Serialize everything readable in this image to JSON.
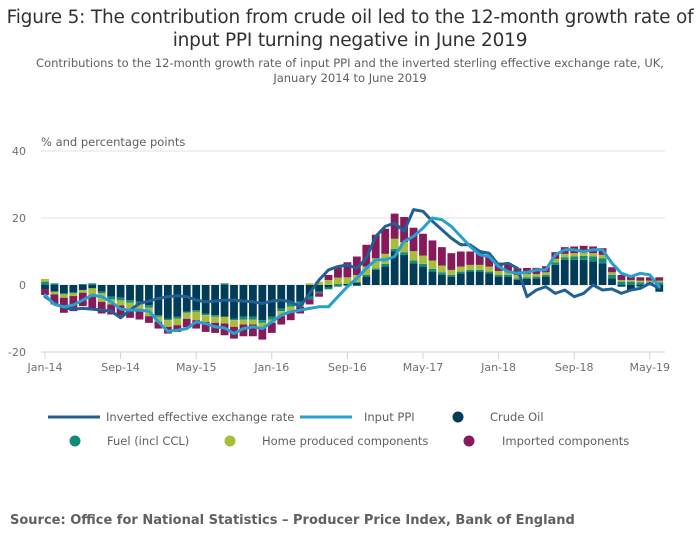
{
  "title": "Figure 5: The contribution from crude oil led to the 12-month growth rate of input PPI turning negative in June 2019",
  "subtitle": "Contributions to the 12-month growth rate of input PPI and the inverted sterling effective exchange rate, UK, January 2014 to June 2019",
  "source": "Source: Office for National Statistics – Producer Price Index, Bank of England",
  "colors": {
    "crude_oil": "#003c57",
    "fuel": "#118c7b",
    "home_produced": "#a8bd3a",
    "imported": "#871a5b",
    "exchange_rate": "#206095",
    "input_ppi": "#27a0cc",
    "grid": "#e0e0e0",
    "axis": "#c8d4e3"
  },
  "chart_data": {
    "type": "bar",
    "stacked": true,
    "title": "Figure 5: The contribution from crude oil led to the 12-month growth rate of input PPI turning negative in June 2019",
    "ylabel": "% and percentage points",
    "xlabel": "",
    "ylim": [
      -20,
      40
    ],
    "yticks": [
      -20,
      0,
      20,
      40
    ],
    "grid": true,
    "legend_position": "bottom",
    "xtick_labels": [
      "Jan-14",
      "Sep-14",
      "May-15",
      "Jan-16",
      "Sep-16",
      "May-17",
      "Jan-18",
      "Sep-18",
      "May-19"
    ],
    "xtick_indices": [
      0,
      8,
      16,
      24,
      32,
      40,
      48,
      56,
      64
    ],
    "categories": [
      "Jan-14",
      "Feb-14",
      "Mar-14",
      "Apr-14",
      "May-14",
      "Jun-14",
      "Jul-14",
      "Aug-14",
      "Sep-14",
      "Oct-14",
      "Nov-14",
      "Dec-14",
      "Jan-15",
      "Feb-15",
      "Mar-15",
      "Apr-15",
      "May-15",
      "Jun-15",
      "Jul-15",
      "Aug-15",
      "Sep-15",
      "Oct-15",
      "Nov-15",
      "Dec-15",
      "Jan-16",
      "Feb-16",
      "Mar-16",
      "Apr-16",
      "May-16",
      "Jun-16",
      "Jul-16",
      "Aug-16",
      "Sep-16",
      "Oct-16",
      "Nov-16",
      "Dec-16",
      "Jan-17",
      "Feb-17",
      "Mar-17",
      "Apr-17",
      "May-17",
      "Jun-17",
      "Jul-17",
      "Aug-17",
      "Sep-17",
      "Oct-17",
      "Nov-17",
      "Dec-17",
      "Jan-18",
      "Feb-18",
      "Mar-18",
      "Apr-18",
      "May-18",
      "Jun-18",
      "Jul-18",
      "Aug-18",
      "Sep-18",
      "Oct-18",
      "Nov-18",
      "Dec-18",
      "Jan-19",
      "Feb-19",
      "Mar-19",
      "Apr-19",
      "May-19",
      "Jun-19"
    ],
    "bar_series": [
      {
        "name": "Crude Oil",
        "key": "crude_oil",
        "values": [
          -1.2,
          -2.0,
          -2.5,
          -2.2,
          -1.5,
          -1.0,
          -2.0,
          -3.5,
          -3.8,
          -4.5,
          -5.0,
          -6.0,
          -9.0,
          -10.0,
          -9.5,
          -8.0,
          -7.5,
          -8.5,
          -9.0,
          -9.5,
          -10.0,
          -9.5,
          -9.5,
          -10.5,
          -9.5,
          -7.0,
          -5.5,
          -5.0,
          -3.5,
          -2.0,
          -0.8,
          0.2,
          0.3,
          0.8,
          2.5,
          4.5,
          5.5,
          10.0,
          9.0,
          6.5,
          5.5,
          4.0,
          3.0,
          2.5,
          3.5,
          4.0,
          4.0,
          3.5,
          2.5,
          2.5,
          1.5,
          1.8,
          2.0,
          2.5,
          6.0,
          7.5,
          7.5,
          7.5,
          7.0,
          6.5,
          2.0,
          -0.5,
          -1.5,
          -0.5,
          0.0,
          -2.0
        ]
      },
      {
        "name": "Fuel (incl CCL)",
        "key": "fuel",
        "values": [
          1.0,
          0.5,
          -0.3,
          -0.3,
          0.3,
          0.5,
          -0.5,
          -0.8,
          -0.8,
          -0.8,
          -0.8,
          -0.8,
          -0.5,
          -0.5,
          -0.5,
          -0.3,
          -0.5,
          -0.5,
          -0.5,
          0.5,
          -0.5,
          -0.8,
          -0.8,
          -0.8,
          -0.8,
          -0.8,
          -1.0,
          -1.0,
          -0.8,
          -0.5,
          -0.5,
          -0.5,
          -0.3,
          -0.3,
          0.5,
          0.5,
          0.8,
          0.8,
          0.8,
          0.8,
          0.8,
          0.8,
          0.8,
          0.5,
          0.5,
          0.5,
          0.5,
          0.5,
          0.5,
          0.5,
          0.5,
          0.5,
          0.5,
          0.5,
          0.8,
          0.8,
          1.0,
          1.2,
          1.5,
          1.5,
          1.0,
          1.0,
          1.0,
          0.8,
          0.8,
          0.8
        ]
      },
      {
        "name": "Home produced components",
        "key": "home_produced",
        "values": [
          0.8,
          -0.8,
          -1.0,
          -0.8,
          -0.8,
          -2.0,
          -2.5,
          -1.5,
          -1.5,
          -2.0,
          -2.0,
          -2.5,
          -1.5,
          -2.0,
          -2.0,
          -1.8,
          -2.5,
          -2.0,
          -1.8,
          -2.0,
          -2.0,
          -1.5,
          -1.5,
          -1.5,
          -1.0,
          -1.5,
          -1.5,
          -0.5,
          0.5,
          1.0,
          1.5,
          2.0,
          2.0,
          2.2,
          2.5,
          3.0,
          3.0,
          3.0,
          3.0,
          2.8,
          2.5,
          2.5,
          2.0,
          1.5,
          1.5,
          1.5,
          1.5,
          1.5,
          1.2,
          1.0,
          1.0,
          1.0,
          0.8,
          0.8,
          1.0,
          1.0,
          1.0,
          1.0,
          1.0,
          1.0,
          0.8,
          0.5,
          0.5,
          0.5,
          0.5,
          0.5
        ]
      },
      {
        "name": "Imported components",
        "key": "imported",
        "values": [
          -1.8,
          -3.0,
          -4.5,
          -4.5,
          -4.0,
          -4.0,
          -3.5,
          -3.0,
          -3.0,
          -2.5,
          -2.5,
          -2.0,
          -2.0,
          -2.0,
          -2.0,
          -2.5,
          -2.5,
          -3.0,
          -3.0,
          -3.5,
          -3.5,
          -3.5,
          -3.5,
          -3.5,
          -3.0,
          -2.5,
          -2.5,
          -2.0,
          -1.5,
          -1.0,
          1.5,
          3.0,
          4.5,
          5.5,
          6.5,
          7.0,
          7.5,
          7.5,
          7.5,
          7.0,
          6.5,
          6.0,
          5.5,
          5.0,
          4.5,
          4.0,
          3.5,
          3.0,
          2.5,
          2.5,
          2.0,
          1.8,
          1.8,
          1.8,
          2.0,
          2.0,
          2.0,
          2.0,
          2.0,
          2.0,
          1.5,
          1.5,
          1.2,
          1.0,
          1.0,
          1.0
        ]
      }
    ],
    "line_series": [
      {
        "name": "Inverted effective exchange rate",
        "key": "exchange_rate",
        "values": [
          -3.5,
          -5.5,
          -6.8,
          -7.2,
          -7.0,
          -7.2,
          -7.5,
          -7.8,
          -9.8,
          -7.5,
          -5.5,
          -4.8,
          -4.0,
          -3.5,
          -3.2,
          -3.5,
          -4.5,
          -5.0,
          -4.8,
          -4.5,
          -4.5,
          -4.8,
          -5.0,
          -5.5,
          -4.8,
          -4.5,
          -5.0,
          -6.5,
          -2.5,
          1.5,
          4.5,
          5.5,
          6.0,
          5.0,
          8.0,
          14.5,
          17.5,
          18.5,
          16.0,
          22.5,
          22.0,
          19.0,
          16.5,
          14.0,
          12.0,
          12.0,
          10.0,
          9.5,
          6.0,
          6.5,
          5.0,
          -3.5,
          -1.5,
          -0.5,
          -2.5,
          -1.5,
          -3.5,
          -2.5,
          0.0,
          -1.5,
          -1.2,
          -2.5,
          -1.5,
          -1.0,
          0.5,
          -1.0
        ]
      },
      {
        "name": "Input PPI",
        "key": "input_ppi",
        "values": [
          -3.0,
          -5.8,
          -6.5,
          -6.0,
          -4.5,
          -3.0,
          -3.5,
          -5.0,
          -7.2,
          -7.5,
          -7.5,
          -7.8,
          -11.0,
          -13.8,
          -13.5,
          -13.0,
          -11.0,
          -11.5,
          -12.5,
          -12.8,
          -14.5,
          -13.0,
          -12.5,
          -13.0,
          -11.0,
          -9.0,
          -8.0,
          -7.5,
          -7.0,
          -6.5,
          -6.5,
          -3.5,
          -0.5,
          2.0,
          5.0,
          7.5,
          7.5,
          8.5,
          13.0,
          14.5,
          17.0,
          20.0,
          19.5,
          17.5,
          14.5,
          11.5,
          9.0,
          8.5,
          5.5,
          4.0,
          3.5,
          3.8,
          4.5,
          4.5,
          9.0,
          10.5,
          10.5,
          10.0,
          10.5,
          10.5,
          6.5,
          3.5,
          2.5,
          3.5,
          3.0,
          -0.5
        ]
      }
    ]
  },
  "legend": [
    {
      "label": "Inverted effective exchange rate",
      "type": "line",
      "key": "exchange_rate"
    },
    {
      "label": "Input PPI",
      "type": "line",
      "key": "input_ppi"
    },
    {
      "label": "Crude Oil",
      "type": "dot",
      "key": "crude_oil"
    },
    {
      "label": "Fuel (incl CCL)",
      "type": "dot",
      "key": "fuel"
    },
    {
      "label": "Home produced components",
      "type": "dot",
      "key": "home_produced"
    },
    {
      "label": "Imported components",
      "type": "dot",
      "key": "imported"
    }
  ]
}
